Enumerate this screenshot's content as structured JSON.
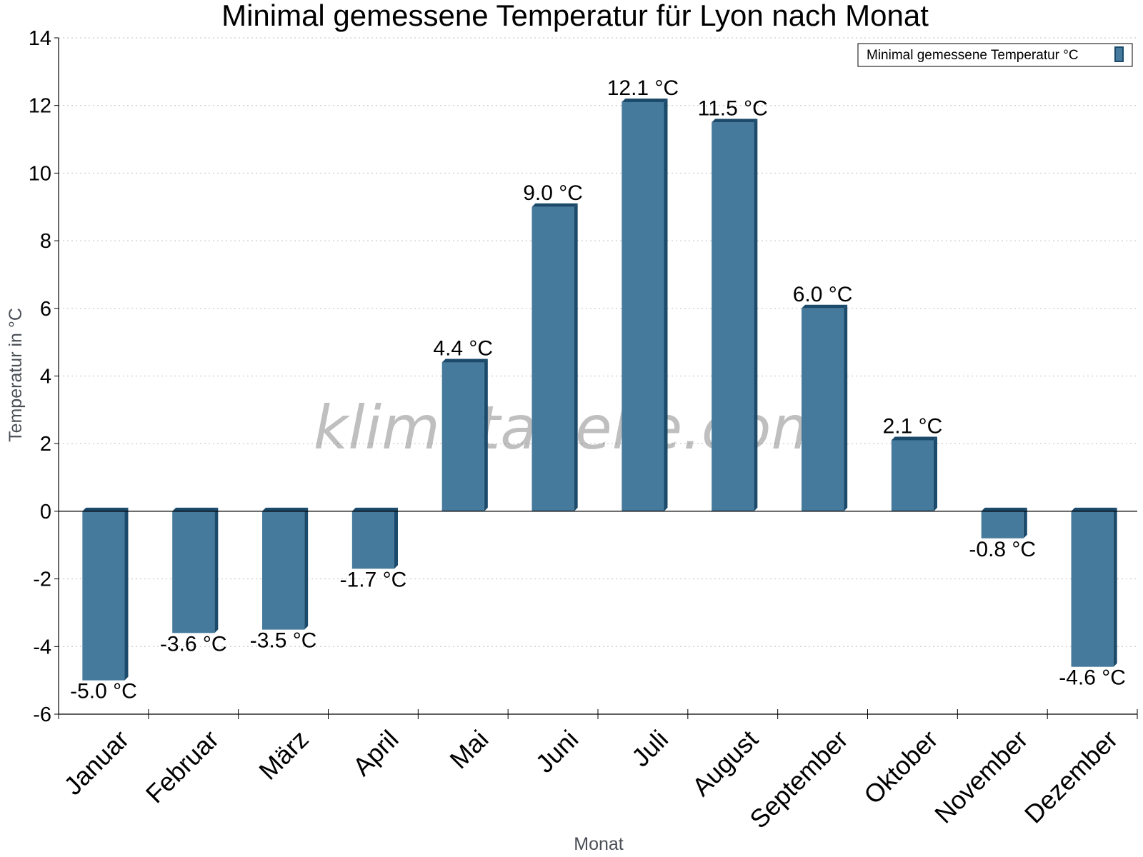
{
  "chart_data": {
    "type": "bar",
    "title": "Minimal gemessene Temperatur für Lyon nach Monat",
    "xlabel": "Monat",
    "ylabel": "Temperatur in °C",
    "categories": [
      "Januar",
      "Februar",
      "März",
      "April",
      "Mai",
      "Juni",
      "Juli",
      "August",
      "September",
      "Oktober",
      "November",
      "Dezember"
    ],
    "series": [
      {
        "name": "Minimal gemessene Temperatur °C",
        "values": [
          -5.0,
          -3.6,
          -3.5,
          -1.7,
          4.4,
          9.0,
          12.1,
          11.5,
          6.0,
          2.1,
          -0.8,
          -4.6
        ],
        "labels": [
          "-5.0 °C",
          "-3.6 °C",
          "-3.5 °C",
          "-1.7 °C",
          "4.4 °C",
          "9.0 °C",
          "12.1 °C",
          "11.5 °C",
          "6.0 °C",
          "2.1 °C",
          "-0.8 °C",
          "-4.6 °C"
        ]
      }
    ],
    "ylim": [
      -6,
      14
    ],
    "yticks": [
      14,
      12,
      10,
      8,
      6,
      4,
      2,
      0,
      -2,
      -4,
      -6
    ],
    "grid": true,
    "legend_position": "top-right",
    "colors": {
      "bar": "#467a9c",
      "bar_side": "#1b4a6b",
      "grid": "#c0c0c0"
    },
    "watermark": "klimatabelle.com"
  }
}
